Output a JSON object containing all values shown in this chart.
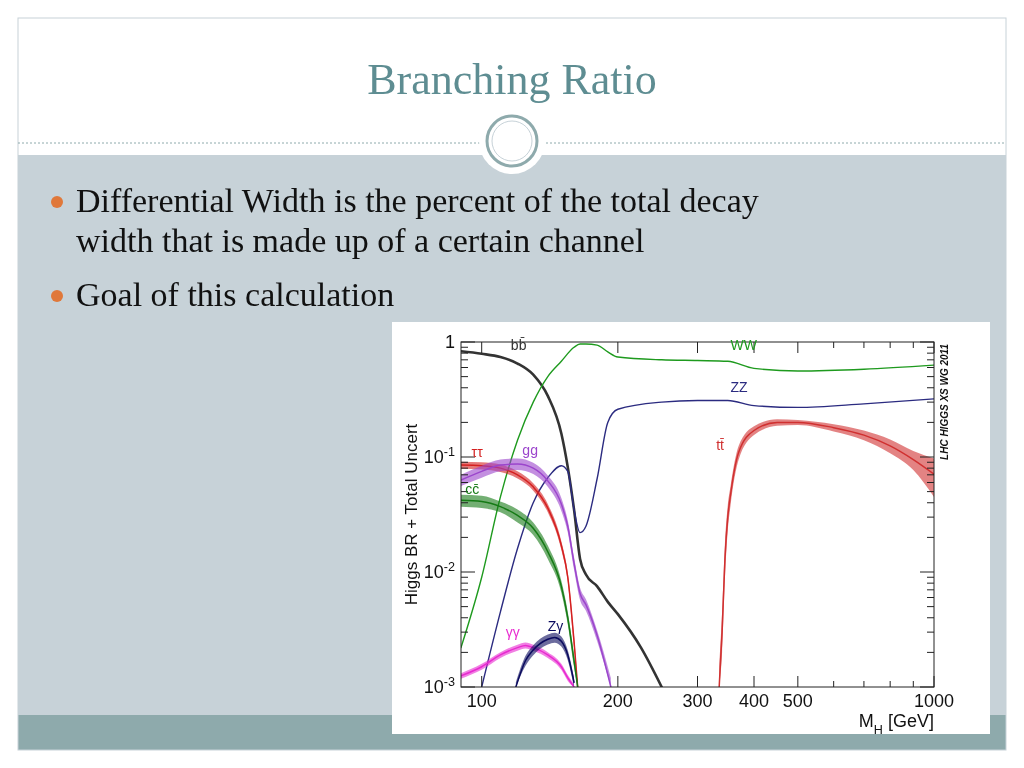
{
  "chart_data": {
    "type": "line",
    "title": "Branching Ratio",
    "annotations": [
      "Differential Width is the percent of the total decay width that is made up of a certain channel",
      "Goal of this calculation",
      "LHC HIGGS XS WG 2011"
    ],
    "xlabel": "M$_{H}$ [GeV]",
    "ylabel": "Higgs BR + Total Uncert",
    "log": "xy",
    "xlim": [
      90,
      1000
    ],
    "ylim": [
      0.001,
      1
    ],
    "xticks": [
      100,
      200,
      300,
      400,
      500,
      {
        "value": 600,
        "label": null
      },
      {
        "value": 700,
        "label": null
      },
      {
        "value": 800,
        "label": null
      },
      {
        "value": 900,
        "label": null
      },
      1000
    ],
    "yticks": [
      {
        "value": 0.001,
        "label": "10$^{-3}$"
      },
      {
        "value": 0.002,
        "label": null
      },
      {
        "value": 0.003,
        "label": null
      },
      {
        "value": 0.004,
        "label": null
      },
      {
        "value": 0.005,
        "label": null
      },
      {
        "value": 0.006,
        "label": null
      },
      {
        "value": 0.007,
        "label": null
      },
      {
        "value": 0.008,
        "label": null
      },
      {
        "value": 0.009,
        "label": null
      },
      {
        "value": 0.01,
        "label": "10$^{-2}$"
      },
      {
        "value": 0.02,
        "label": null
      },
      {
        "value": 0.03,
        "label": null
      },
      {
        "value": 0.04,
        "label": null
      },
      {
        "value": 0.05,
        "label": null
      },
      {
        "value": 0.06,
        "label": null
      },
      {
        "value": 0.07,
        "label": null
      },
      {
        "value": 0.08,
        "label": null
      },
      {
        "value": 0.09,
        "label": null
      },
      {
        "value": 0.1,
        "label": "10$^{-1}$"
      },
      {
        "value": 0.2,
        "label": null
      },
      {
        "value": 0.3,
        "label": null
      },
      {
        "value": 0.4,
        "label": null
      },
      {
        "value": 0.5,
        "label": null
      },
      {
        "value": 0.6,
        "label": null
      },
      {
        "value": 0.7,
        "label": null
      },
      {
        "value": 0.8,
        "label": null
      },
      {
        "value": 0.9,
        "label": null
      },
      1
    ],
    "grid": false,
    "legend": false,
    "marker": "none",
    "line_style": "solid",
    "series": [
      {
        "name": "bb̄",
        "color": "#333333",
        "x": [
          90,
          100,
          110,
          120,
          130,
          140,
          150,
          160,
          165,
          170,
          180,
          190,
          200,
          225,
          250
        ],
        "values": [
          0.83,
          0.79,
          0.74,
          0.65,
          0.52,
          0.34,
          0.16,
          0.035,
          0.013,
          0.0095,
          0.0075,
          0.0055,
          0.0043,
          0.0022,
          0.001
        ]
      },
      {
        "name": "WW",
        "color": "#1e9a1e",
        "x": [
          90,
          100,
          110,
          120,
          130,
          140,
          150,
          160,
          165,
          170,
          180,
          190,
          200,
          250,
          300,
          350,
          400,
          500,
          700,
          1000
        ],
        "values": [
          0.0022,
          0.009,
          0.045,
          0.14,
          0.3,
          0.5,
          0.68,
          0.9,
          0.96,
          0.96,
          0.94,
          0.82,
          0.74,
          0.7,
          0.69,
          0.68,
          0.59,
          0.56,
          0.58,
          0.63
        ]
      },
      {
        "name": "ZZ",
        "color": "#2b2b80",
        "x": [
          100,
          110,
          120,
          130,
          140,
          150,
          155,
          160,
          165,
          170,
          180,
          190,
          200,
          250,
          300,
          350,
          400,
          500,
          700,
          1000
        ],
        "values": [
          0.001,
          0.0045,
          0.016,
          0.04,
          0.066,
          0.084,
          0.075,
          0.035,
          0.022,
          0.025,
          0.065,
          0.2,
          0.26,
          0.3,
          0.31,
          0.31,
          0.28,
          0.27,
          0.29,
          0.32
        ]
      },
      {
        "name": "ττ",
        "color": "#d42020",
        "x": [
          90,
          100,
          110,
          120,
          130,
          140,
          150,
          155,
          160,
          163
        ],
        "values": [
          0.085,
          0.084,
          0.08,
          0.07,
          0.055,
          0.036,
          0.017,
          0.009,
          0.0025,
          0.001
        ],
        "lower": [
          0.079,
          0.078,
          0.074,
          0.065,
          0.051,
          0.033,
          0.0155,
          0.0082,
          0.0022,
          0.001
        ],
        "upper": [
          0.091,
          0.09,
          0.086,
          0.075,
          0.059,
          0.039,
          0.0185,
          0.0098,
          0.0028,
          0.0011
        ]
      },
      {
        "name": "gg",
        "color": "#9b45cc",
        "x": [
          90,
          100,
          110,
          120,
          130,
          140,
          150,
          155,
          160,
          165,
          170,
          180,
          193
        ],
        "values": [
          0.063,
          0.075,
          0.085,
          0.087,
          0.08,
          0.062,
          0.039,
          0.025,
          0.012,
          0.0065,
          0.0052,
          0.0028,
          0.001
        ],
        "lower": [
          0.056,
          0.066,
          0.075,
          0.077,
          0.071,
          0.055,
          0.034,
          0.022,
          0.0105,
          0.0057,
          0.0046,
          0.0025,
          0.001
        ],
        "upper": [
          0.07,
          0.084,
          0.095,
          0.097,
          0.089,
          0.069,
          0.044,
          0.028,
          0.0135,
          0.0073,
          0.0058,
          0.0031,
          0.0012
        ]
      },
      {
        "name": "cc̄",
        "color": "#157a15",
        "x": [
          90,
          100,
          110,
          120,
          130,
          140,
          150,
          155,
          160,
          163
        ],
        "values": [
          0.042,
          0.041,
          0.037,
          0.031,
          0.024,
          0.015,
          0.0075,
          0.004,
          0.0017,
          0.001
        ],
        "lower": [
          0.037,
          0.036,
          0.033,
          0.027,
          0.021,
          0.013,
          0.0066,
          0.0035,
          0.0015,
          0.001
        ],
        "upper": [
          0.047,
          0.046,
          0.041,
          0.035,
          0.027,
          0.017,
          0.0084,
          0.0045,
          0.0019,
          0.0011
        ]
      },
      {
        "name": "γγ",
        "color": "#e82ad0",
        "x": [
          90,
          100,
          110,
          120,
          125,
          130,
          140,
          150,
          155,
          160
        ],
        "values": [
          0.00125,
          0.0015,
          0.0019,
          0.0022,
          0.0023,
          0.0022,
          0.0019,
          0.0015,
          0.0012,
          0.001
        ],
        "lower": [
          0.00118,
          0.00141,
          0.00179,
          0.00207,
          0.00216,
          0.00207,
          0.00179,
          0.00141,
          0.00113,
          0.001
        ],
        "upper": [
          0.00132,
          0.00159,
          0.00201,
          0.00233,
          0.00244,
          0.00233,
          0.00201,
          0.00159,
          0.00127,
          0.00106
        ]
      },
      {
        "name": "Zγ",
        "color": "#0a0a5e",
        "x": [
          119,
          125,
          130,
          140,
          145,
          150,
          155,
          160
        ],
        "values": [
          0.001,
          0.0017,
          0.0021,
          0.0026,
          0.0027,
          0.0025,
          0.0019,
          0.0011
        ],
        "lower": [
          0.001,
          0.00153,
          0.00189,
          0.00234,
          0.00243,
          0.00225,
          0.00171,
          0.001
        ],
        "upper": [
          0.0011,
          0.00187,
          0.00231,
          0.00286,
          0.00297,
          0.00275,
          0.00209,
          0.00121
        ]
      },
      {
        "name": "tt̄",
        "color": "#d03030",
        "x": [
          335,
          340,
          345,
          350,
          355,
          370,
          400,
          450,
          500,
          600,
          700,
          800,
          900,
          1000
        ],
        "values": [
          0.001,
          0.003,
          0.013,
          0.03,
          0.047,
          0.11,
          0.17,
          0.2,
          0.2,
          0.18,
          0.155,
          0.125,
          0.095,
          0.071
        ],
        "lower": [
          0.001,
          0.002,
          0.009,
          0.023,
          0.038,
          0.095,
          0.155,
          0.187,
          0.19,
          0.167,
          0.14,
          0.108,
          0.077,
          0.045
        ],
        "upper": [
          0.0015,
          0.0045,
          0.018,
          0.038,
          0.056,
          0.125,
          0.185,
          0.213,
          0.21,
          0.193,
          0.17,
          0.142,
          0.113,
          0.097
        ]
      }
    ]
  }
}
